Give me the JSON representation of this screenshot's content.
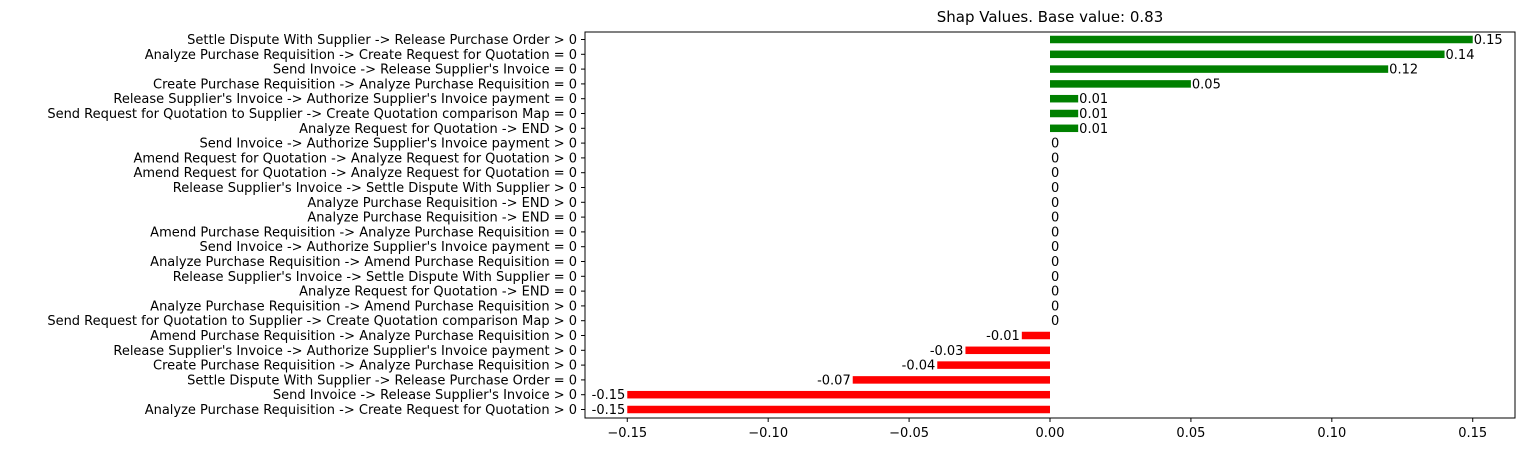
{
  "chart_data": {
    "type": "bar",
    "orientation": "horizontal",
    "title": "Shap Values. Base value: 0.83",
    "xlabel": "",
    "ylabel": "",
    "xlim": [
      -0.165,
      0.165
    ],
    "xticks": [
      -0.15,
      -0.1,
      -0.05,
      0.0,
      0.05,
      0.1,
      0.15
    ],
    "xtick_labels": [
      "−0.15",
      "−0.10",
      "−0.05",
      "0.00",
      "0.05",
      "0.10",
      "0.15"
    ],
    "grid": false,
    "colors": {
      "positive": "#008000",
      "negative": "#ff0000",
      "zero": "#008000"
    },
    "categories": [
      "Settle Dispute With Supplier -> Release Purchase Order > 0",
      "Analyze Purchase Requisition -> Create Request for Quotation = 0",
      "Send Invoice -> Release Supplier's Invoice = 0",
      "Create Purchase Requisition -> Analyze Purchase Requisition = 0",
      "Release Supplier's Invoice -> Authorize Supplier's Invoice payment = 0",
      "Send Request for Quotation to Supplier -> Create Quotation comparison Map = 0",
      "Analyze Request for Quotation -> END > 0",
      "Send Invoice -> Authorize Supplier's Invoice payment > 0",
      "Amend Request for Quotation -> Analyze Request for Quotation > 0",
      "Amend Request for Quotation -> Analyze Request for Quotation = 0",
      "Release Supplier's Invoice -> Settle Dispute With Supplier > 0",
      "Analyze Purchase Requisition -> END > 0",
      "Analyze Purchase Requisition -> END = 0",
      "Amend Purchase Requisition -> Analyze Purchase Requisition = 0",
      "Send Invoice -> Authorize Supplier's Invoice payment = 0",
      "Analyze Purchase Requisition -> Amend Purchase Requisition = 0",
      "Release Supplier's Invoice -> Settle Dispute With Supplier = 0",
      "Analyze Request for Quotation -> END = 0",
      "Analyze Purchase Requisition -> Amend Purchase Requisition > 0",
      "Send Request for Quotation to Supplier -> Create Quotation comparison Map > 0",
      "Amend Purchase Requisition -> Analyze Purchase Requisition > 0",
      "Release Supplier's Invoice -> Authorize Supplier's Invoice payment > 0",
      "Create Purchase Requisition -> Analyze Purchase Requisition > 0",
      "Settle Dispute With Supplier -> Release Purchase Order = 0",
      "Send Invoice -> Release Supplier's Invoice > 0",
      "Analyze Purchase Requisition -> Create Request for Quotation > 0"
    ],
    "values": [
      0.15,
      0.14,
      0.12,
      0.05,
      0.01,
      0.01,
      0.01,
      0,
      0,
      0,
      0,
      0,
      0,
      0,
      0,
      0,
      0,
      0,
      0,
      0,
      -0.01,
      -0.03,
      -0.04,
      -0.07,
      -0.15,
      -0.15
    ],
    "value_labels": [
      "0.15",
      "0.14",
      "0.12",
      "0.05",
      "0.01",
      "0.01",
      "0.01",
      "0",
      "0",
      "0",
      "0",
      "0",
      "0",
      "0",
      "0",
      "0",
      "0",
      "0",
      "0",
      "0",
      "-0.01",
      "-0.03",
      "-0.04",
      "-0.07",
      "-0.15",
      "-0.15"
    ]
  }
}
